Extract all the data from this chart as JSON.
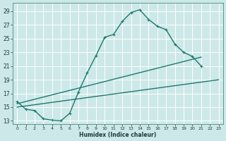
{
  "xlabel": "Humidex (Indice chaleur)",
  "bg_color": "#cde8e8",
  "grid_color": "#ffffff",
  "line_color": "#1a7a6e",
  "xlim": [
    -0.5,
    23.5
  ],
  "ylim": [
    12.5,
    30.2
  ],
  "xticks": [
    0,
    1,
    2,
    3,
    4,
    5,
    6,
    7,
    8,
    9,
    10,
    11,
    12,
    13,
    14,
    15,
    16,
    17,
    18,
    19,
    20,
    21,
    22,
    23
  ],
  "yticks": [
    13,
    15,
    17,
    19,
    21,
    23,
    25,
    27,
    29
  ],
  "line1_x": [
    0,
    1,
    2,
    3,
    4,
    5,
    6,
    7,
    8,
    9,
    10,
    11,
    12,
    13,
    14,
    15,
    16,
    17,
    18,
    19,
    20,
    21
  ],
  "line1_y": [
    15.8,
    14.7,
    14.5,
    13.3,
    13.1,
    13.0,
    14.1,
    17.2,
    20.0,
    22.5,
    25.2,
    25.6,
    27.5,
    28.8,
    29.2,
    27.8,
    26.8,
    26.3,
    24.2,
    23.0,
    22.4,
    21.0
  ],
  "line2_x": [
    0,
    23
  ],
  "line2_y": [
    15.0,
    19.0
  ],
  "line3_x": [
    0,
    21
  ],
  "line3_y": [
    15.5,
    22.3
  ],
  "marker_size": 2.5,
  "line_width": 1.0
}
